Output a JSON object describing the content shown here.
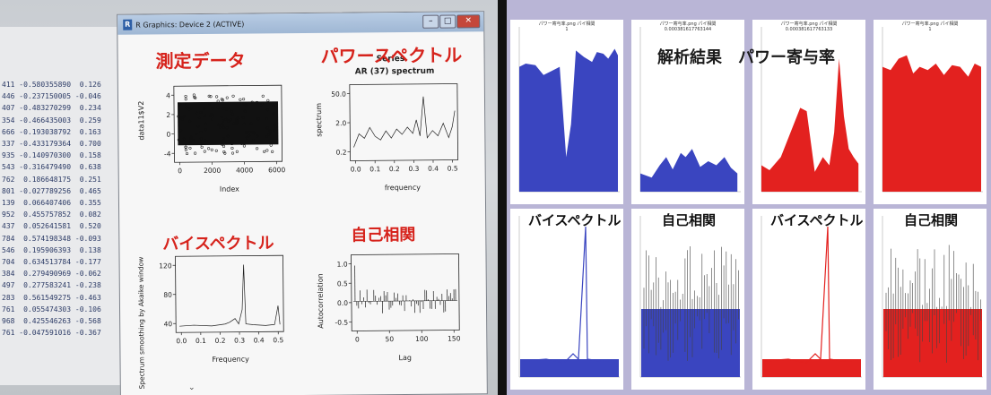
{
  "console": {
    "lines": [
      "411 -0.580355890  0.126",
      "446 -0.237150005 -0.046",
      "407 -0.483270299  0.234",
      "354 -0.466435003  0.259",
      "666 -0.193038792  0.163",
      "337 -0.433179364  0.700",
      "935 -0.140970300  0.158",
      "543 -0.316479490  0.638",
      "762  0.186648175  0.251",
      "801 -0.027789256  0.465",
      "139  0.066407406  0.355",
      "952  0.455757852  0.082",
      "437  0.052641581  0.520",
      "784  0.574198348 -0.093",
      "546  0.195906393  0.138",
      "704  0.634513784 -0.177",
      "384  0.279490969 -0.062",
      "497  0.277583241 -0.238",
      "283  0.561549275 -0.463",
      "761  0.055474303 -0.106",
      "968  0.425546263 -0.568",
      "761 -0.047591016 -0.367"
    ]
  },
  "r_window": {
    "title": "R Graphics: Device 2 (ACTIVE)",
    "icon": "R",
    "min_symbol": "–",
    "max_symbol": "□",
    "close_symbol": "✕",
    "scroll_symbol": "⌄"
  },
  "annotations": {
    "measured_data": "測定データ",
    "power_spectrum": "パワースペクトル",
    "bispectrum": "バイスペクトル",
    "autocorrelation": "自己相関",
    "analysis_result": "解析結果",
    "power_contribution": "パワー寄与率"
  },
  "plot1": {
    "ylabel": "data11$V2",
    "xlabel": "Index",
    "xticks": [
      "0",
      "2000",
      "4000",
      "6000"
    ],
    "yticks": [
      "-4",
      "0",
      "2",
      "4"
    ]
  },
  "plot2": {
    "title_top": "Series",
    "title": "AR (37) spectrum",
    "ylabel": "spectrum",
    "xlabel": "frequency",
    "xticks": [
      "0.0",
      "0.1",
      "0.2",
      "0.3",
      "0.4",
      "0.5"
    ],
    "yticks": [
      "0.2",
      "2.0",
      "50.0"
    ]
  },
  "plot3": {
    "ylabel": "Spectrum smoothing by Akaike window",
    "xlabel": "Frequency",
    "xticks": [
      "0.0",
      "0.1",
      "0.2",
      "0.3",
      "0.4",
      "0.5"
    ],
    "yticks": [
      "40",
      "80",
      "120"
    ]
  },
  "plot4": {
    "ylabel": "Autocorrelation",
    "xlabel": "Lag",
    "xticks": [
      "0",
      "50",
      "100",
      "150"
    ],
    "yticks": [
      "-0.5",
      "0.0",
      "0.5",
      "1.0"
    ]
  },
  "tiles_top": [
    {
      "title1": "パワー寄与率.png  パイ相関",
      "title2": "1",
      "color": "#3a45c0"
    },
    {
      "title1": "パワー寄与率.png  パイ相関",
      "title2": "0.000381617763144",
      "color": "#3a45c0"
    },
    {
      "title1": "パワー寄与率.png  パイ相関",
      "title2": "0.000381617763133",
      "color": "#e3211f"
    },
    {
      "title1": "パワー寄与率.png  パイ相関",
      "title2": "1",
      "color": "#e3211f"
    }
  ],
  "tiles_bottom": [
    {
      "label": "バイスペクトル",
      "color": "#3a45c0"
    },
    {
      "label": "自己相関",
      "color": "#3a45c0"
    },
    {
      "label": "バイスペクトル",
      "color": "#e3211f"
    },
    {
      "label": "自己相関",
      "color": "#e3211f"
    }
  ],
  "colors": {
    "annotation_red": "#d6231c",
    "blue_fill": "#3a45c0",
    "red_fill": "#e3211f",
    "panel_lavender": "#b9b5d6"
  }
}
